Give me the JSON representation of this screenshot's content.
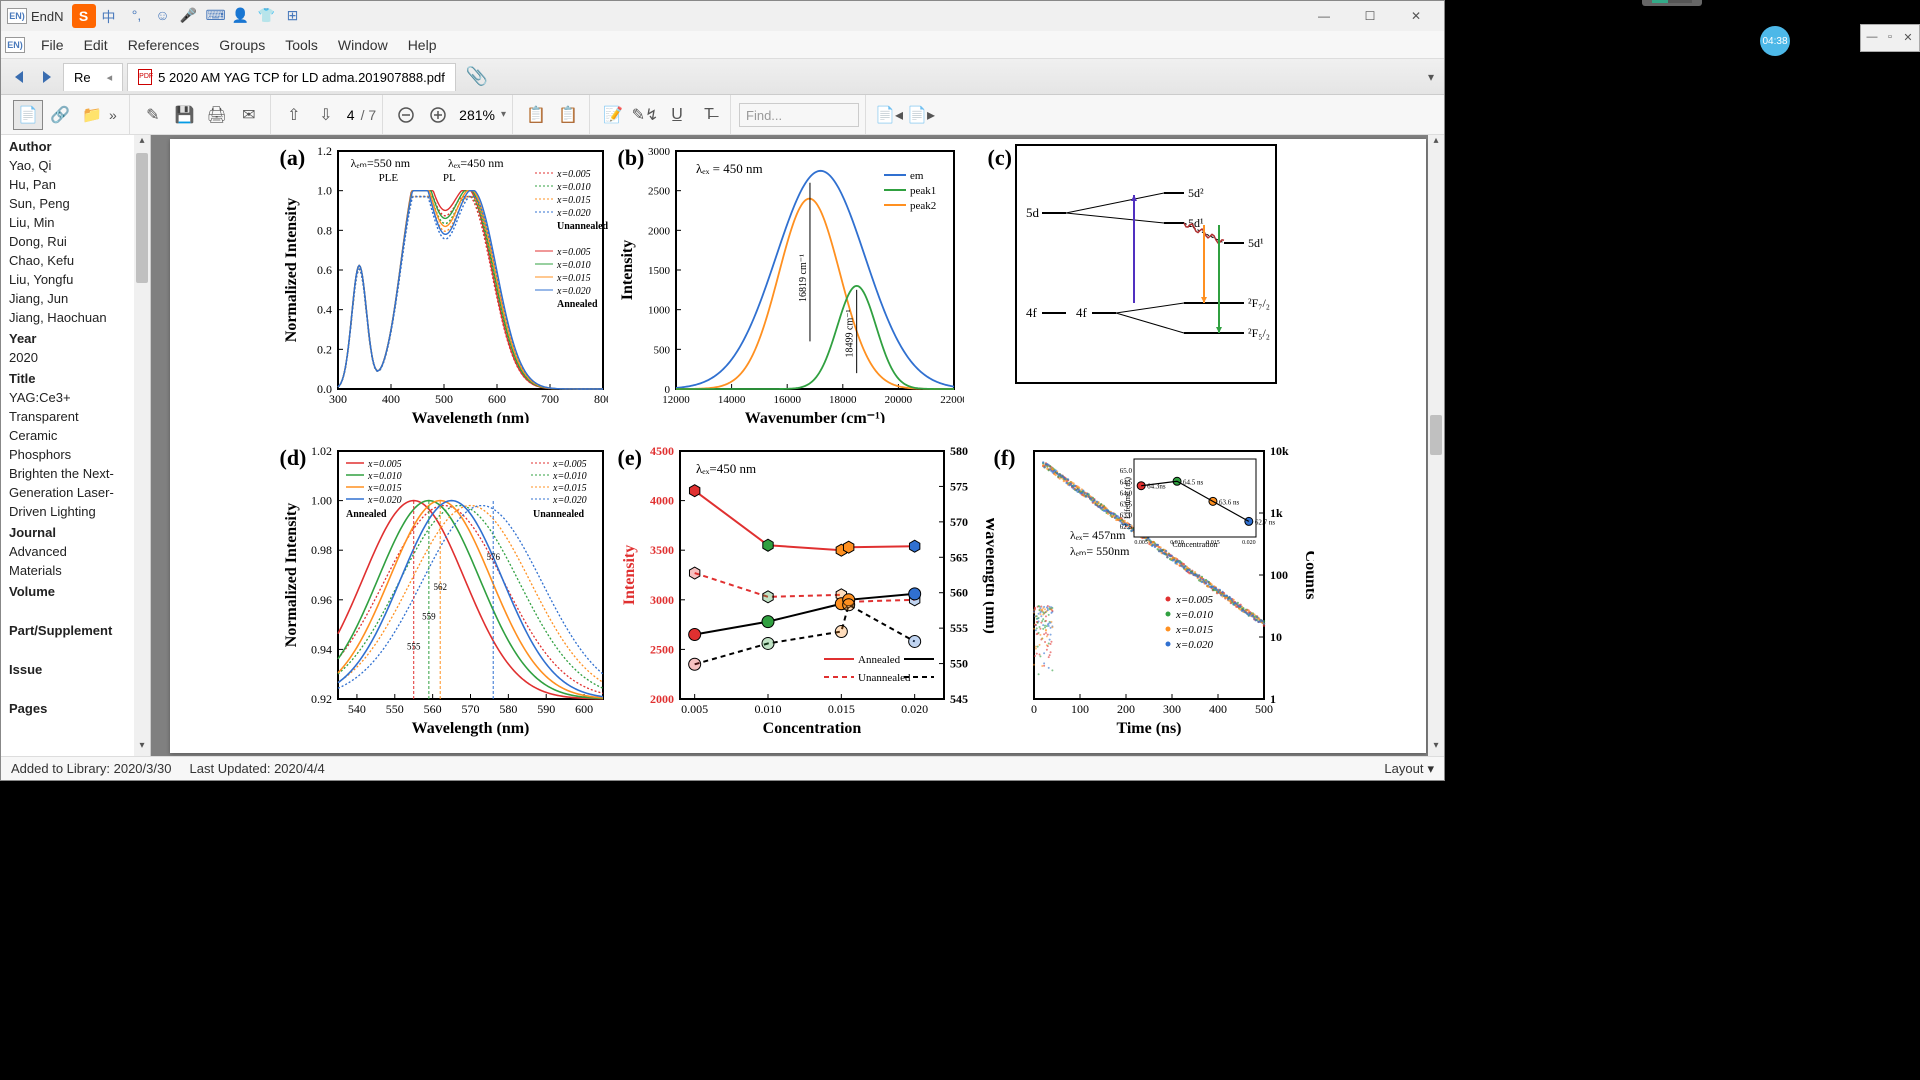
{
  "app": {
    "name": "EndN",
    "iconText": "EN)"
  },
  "ime": {
    "sogou": "S",
    "lang": "中",
    "icons": [
      "°,",
      "☺",
      "🎤",
      "⌨",
      "👤",
      "👕",
      "⊞"
    ]
  },
  "window_controls": {
    "min": "—",
    "max": "☐",
    "close": "✕"
  },
  "menus": [
    "File",
    "Edit",
    "References",
    "Groups",
    "Tools",
    "Window",
    "Help"
  ],
  "tabs": {
    "back": "◄",
    "fwd": "►",
    "left_close": "◂",
    "short": "Re",
    "pdf": "5 2020 AM YAG TCP for LD adma.201907888.pdf",
    "pdf_icon": "PDF",
    "attach": "📎",
    "expand": "▾"
  },
  "toolbar": {
    "left_icons": [
      "📄",
      "🔗",
      "📁"
    ],
    "chev": "»",
    "mid_icons": [
      "✎",
      "💾",
      "🖨",
      "✉"
    ],
    "nav_up": "⇧",
    "nav_down": "⇩",
    "page": "4",
    "page_total": "/ 7",
    "zoom_out": "−",
    "zoom_in": "+",
    "zoom": "281%",
    "zoom_drop": "▾",
    "copy_icons": [
      "📋",
      "📋"
    ],
    "note_icons": [
      "📝",
      "✎↯",
      "U̲",
      "T̶"
    ],
    "find_placeholder": "Find...",
    "right_icons": [
      "📄◂",
      "📄▸"
    ]
  },
  "sidebar": {
    "author_h": "Author",
    "authors": [
      "Yao, Qi",
      "Hu, Pan",
      "Sun, Peng",
      "Liu, Min",
      "Dong, Rui",
      "Chao, Kefu",
      "Liu, Yongfu",
      "Jiang, Jun",
      "Jiang, Haochuan"
    ],
    "year_h": "Year",
    "year": "2020",
    "title_h": "Title",
    "title_lines": [
      "YAG:Ce3+",
      " Transparent",
      "Ceramic",
      "Phosphors",
      "Brighten the Next-",
      "Generation Laser-",
      "Driven Lighting"
    ],
    "journal_h": "Journal",
    "journal_lines": [
      "Advanced",
      "Materials"
    ],
    "volume_h": "Volume",
    "part_h": "Part/Supplement",
    "issue_h": "Issue",
    "pages_h": "Pages"
  },
  "status": {
    "added": "Added to Library: 2020/3/30",
    "updated": "Last Updated: 2020/4/4",
    "layout": "Layout"
  },
  "time_badge": "04:38",
  "fig": {
    "a": {
      "label": "(a)",
      "xlabel": "Wavelength (nm)",
      "ylabel": "Normalized Intensity",
      "em": "λₑₘ=550 nm",
      "ex": "λₑₓ=450 nm",
      "ple": "PLE",
      "pl": "PL",
      "unannealed": "Unannealed",
      "annealed": "Annealed",
      "xlim": [
        300,
        800
      ],
      "ylim": [
        0,
        1.2
      ],
      "yticks": [
        0.0,
        0.2,
        0.4,
        0.6,
        0.8,
        1.0,
        1.2
      ],
      "xticks": [
        300,
        400,
        500,
        600,
        700,
        800
      ],
      "series_labels": [
        "x=0.005",
        "x=0.010",
        "x=0.015",
        "x=0.020"
      ],
      "colors": [
        "#e03030",
        "#30a040",
        "#ff9020",
        "#3070d0"
      ],
      "ple_peak_x": 340,
      "ple_peak2_x": 450,
      "pl_peak_x": 540,
      "ple_peak_h": 0.62,
      "main_peak_h": 1.0
    },
    "b": {
      "label": "(b)",
      "xlabel": "Wavenumber (cm⁻¹)",
      "ylabel": "Intensity",
      "ex": "λₑₓ = 450 nm",
      "xlim": [
        12000,
        22000
      ],
      "ylim": [
        0,
        3000
      ],
      "xticks": [
        12000,
        14000,
        16000,
        18000,
        20000,
        22000
      ],
      "yticks": [
        0,
        500,
        1000,
        1500,
        2000,
        2500,
        3000
      ],
      "leg": [
        "em",
        "peak1",
        "peak2"
      ],
      "colors": [
        "#3070d0",
        "#30a040",
        "#ff9020"
      ],
      "arrow1": "16819 cm⁻¹",
      "arrow2": "18499 cm⁻¹",
      "em_peak_x": 17200,
      "em_peak_h": 2750,
      "p1_peak_x": 18500,
      "p1_peak_h": 1300,
      "p2_peak_x": 16800,
      "p2_peak_h": 2400
    },
    "c": {
      "label": "(c)",
      "levels": {
        "5d": "5d",
        "4f": "4f",
        "4fp": "4f",
        "5d2": "5d²",
        "5d1": "5d¹",
        "5d1p": "5d¹",
        "F72": "²F₇/₂",
        "F52": "²F₅/₂"
      },
      "colors": {
        "abs": "#5030c0",
        "em1": "#ff9020",
        "em2": "#30a040",
        "nr": "#b03030"
      }
    },
    "d": {
      "label": "(d)",
      "xlabel": "Wavelength (nm)",
      "ylabel": "Normalized Intensity",
      "xlim": [
        535,
        605
      ],
      "ylim": [
        0.92,
        1.02
      ],
      "xticks": [
        540,
        550,
        560,
        570,
        580,
        590,
        600
      ],
      "yticks": [
        0.92,
        0.94,
        0.96,
        0.98,
        1.0,
        1.02
      ],
      "annealed": "Annealed",
      "unannealed": "Unannealed",
      "series_labels": [
        "x=0.005",
        "x=0.010",
        "x=0.015",
        "x=0.020"
      ],
      "colors": [
        "#e03030",
        "#30a040",
        "#ff9020",
        "#3070d0"
      ],
      "markers": [
        "555",
        "559",
        "562",
        "576"
      ]
    },
    "e": {
      "label": "(e)",
      "xlabel": "Concentration",
      "ylabel_l": "Intensity",
      "ylabel_r": "Wavelength (nm)",
      "ex": "λₑₓ=450 nm",
      "xlim": [
        0.004,
        0.022
      ],
      "ylim_l": [
        2000,
        4500
      ],
      "ylim_r": [
        545,
        580
      ],
      "xticks": [
        0.005,
        0.01,
        0.015,
        0.02
      ],
      "yticks_l": [
        2000,
        2500,
        3000,
        3500,
        4000,
        4500
      ],
      "yticks_r": [
        545,
        550,
        555,
        560,
        565,
        570,
        575,
        580
      ],
      "annealed": "Annealed",
      "unannealed": "Unannealed",
      "colors": {
        "red": "#e03030",
        "black": "#000",
        "green": "#30a040",
        "orange": "#ff9020",
        "blue": "#3070d0"
      },
      "intens_ann": [
        4100,
        3550,
        3500,
        3530,
        3540
      ],
      "intens_un": [
        3270,
        3030,
        3050,
        2980,
        3000
      ],
      "wl_ann": [
        2650,
        2780,
        2960,
        3000,
        3060
      ],
      "wl_un": [
        2350,
        2560,
        2680,
        2950,
        2580
      ]
    },
    "f": {
      "label": "(f)",
      "xlabel": "Time (ns)",
      "ylabel_r": "Counts",
      "xlim": [
        0,
        500
      ],
      "ylim": [
        1,
        10000
      ],
      "xticks": [
        0,
        100,
        200,
        300,
        400,
        500
      ],
      "yticks": [
        "1",
        "10",
        "100",
        "1k",
        "10k"
      ],
      "ex": "λₑₓ= 457nm",
      "em": "λₑₘ= 550nm",
      "series_labels": [
        "x=0.005",
        "x=0.010",
        "x=0.015",
        "x=0.020"
      ],
      "colors": [
        "#e03030",
        "#30a040",
        "#ff9020",
        "#3070d0"
      ],
      "inset": {
        "ylabel": "Lifetime (ns)",
        "xlabel": "Concentration",
        "xticks": [
          0.005,
          0.01,
          0.015,
          0.02
        ],
        "yticks": [
          62.5,
          63.0,
          63.5,
          64.0,
          64.5,
          65.0
        ],
        "vals": [
          "64.3ns",
          "64.5 ns",
          "63.6 ns",
          "62.7 ns"
        ]
      }
    }
  }
}
